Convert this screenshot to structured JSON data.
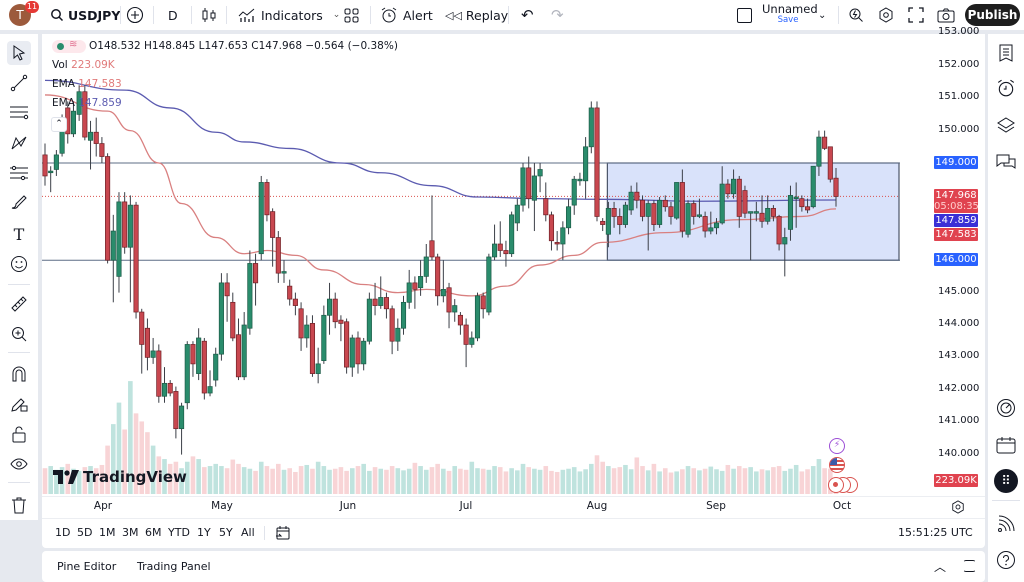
{
  "topbar": {
    "avatar_letter": "T",
    "notification_count": "11",
    "symbol": "USDJPY",
    "interval": "D",
    "indicators_label": "Indicators",
    "alert_label": "Alert",
    "replay_label": "Replay",
    "layout_name": "Unnamed",
    "save_label": "Save",
    "publish_label": "Publish"
  },
  "legend": {
    "ohlc": "O148.532 H148.845 L147.653 C147.968 −0.564 (−0.38%)",
    "vol_label": "Vol",
    "vol_value": "223.09K",
    "ema1_label": "EMA",
    "ema1_value": "147.583",
    "ema2_label": "EMA",
    "ema2_value": "147.859"
  },
  "price_axis": {
    "ticks": [
      "153.000",
      "152.000",
      "151.000",
      "150.000",
      "145.000",
      "144.000",
      "143.000",
      "142.000",
      "141.000",
      "140.000"
    ],
    "tick_values": [
      153,
      152,
      151,
      150,
      145,
      144,
      143,
      142,
      141,
      140
    ],
    "level_149": "149.000",
    "level_146": "146.000",
    "last_price": "147.968",
    "countdown": "05:08:35",
    "ema2_price": "147.859",
    "ema1_price": "147.583",
    "volume_label": "223.09K"
  },
  "time_axis": {
    "labels": [
      "Apr",
      "May",
      "Jun",
      "Jul",
      "Aug",
      "Sep",
      "Oct"
    ]
  },
  "range_bar": {
    "buttons": [
      "1D",
      "5D",
      "1M",
      "3M",
      "6M",
      "YTD",
      "1Y",
      "5Y",
      "All"
    ],
    "clock": "15:51:25 UTC"
  },
  "bottom_panel": {
    "tabs": [
      "Pine Editor",
      "Trading Panel"
    ]
  },
  "watermark": "TradingView",
  "colors": {
    "up": "#2a8c6c",
    "down": "#c8474f",
    "ema_fast": "#d98080",
    "ema_slow": "#5b5bb0",
    "range_box": "#d5dffa",
    "level_box": "#2962ff",
    "accent": "#131722"
  },
  "chart_data": {
    "type": "candlestick",
    "symbol": "USDJPY",
    "interval": "D",
    "x_ticks": [
      "Apr",
      "May",
      "Jun",
      "Jul",
      "Aug",
      "Sep",
      "Oct"
    ],
    "ylim": [
      139,
      153
    ],
    "horizontal_levels": [
      149.0,
      146.0
    ],
    "range_box": {
      "top": 149.0,
      "bottom": 146.0,
      "start_index": 99
    },
    "candles_ohlc": [
      [
        149.25,
        149.6,
        148.3,
        148.6
      ],
      [
        148.7,
        148.9,
        148.1,
        148.75
      ],
      [
        148.8,
        149.4,
        148.6,
        149.25
      ],
      [
        149.3,
        150.5,
        149.2,
        150.3
      ],
      [
        150.7,
        150.9,
        149.6,
        149.9
      ],
      [
        149.9,
        150.9,
        149.8,
        150.6
      ],
      [
        150.5,
        151.4,
        150.3,
        151.2
      ],
      [
        151.2,
        151.4,
        149.7,
        149.8
      ],
      [
        149.7,
        150.3,
        148.8,
        149.95
      ],
      [
        149.95,
        150.4,
        149.2,
        149.6
      ],
      [
        149.6,
        149.8,
        149.0,
        149.2
      ],
      [
        149.2,
        149.3,
        145.9,
        146.0
      ],
      [
        146.0,
        147.4,
        144.7,
        146.9
      ],
      [
        145.5,
        148.1,
        145.0,
        147.8
      ],
      [
        147.8,
        148.1,
        146.2,
        146.4
      ],
      [
        146.4,
        148.0,
        144.7,
        147.7
      ],
      [
        147.7,
        147.8,
        144.2,
        144.4
      ],
      [
        144.4,
        144.5,
        142.5,
        143.4
      ],
      [
        143.9,
        144.2,
        142.6,
        143.0
      ],
      [
        143.0,
        143.6,
        142.8,
        143.2
      ],
      [
        143.2,
        143.4,
        141.6,
        141.8
      ],
      [
        141.8,
        142.7,
        141.6,
        142.2
      ],
      [
        142.2,
        142.3,
        141.8,
        141.9
      ],
      [
        141.95,
        142.1,
        140.5,
        140.8
      ],
      [
        140.8,
        141.6,
        140.0,
        141.5
      ],
      [
        141.6,
        143.5,
        141.4,
        143.4
      ],
      [
        143.4,
        143.5,
        142.4,
        142.8
      ],
      [
        142.5,
        143.9,
        142.3,
        143.6
      ],
      [
        143.5,
        143.6,
        141.7,
        141.9
      ],
      [
        141.9,
        142.6,
        141.8,
        142.1
      ],
      [
        142.3,
        143.3,
        142.1,
        143.1
      ],
      [
        143.1,
        145.6,
        142.9,
        145.3
      ],
      [
        145.3,
        145.6,
        144.1,
        144.9
      ],
      [
        144.7,
        145.0,
        143.5,
        143.6
      ],
      [
        143.7,
        144.2,
        142.3,
        142.4
      ],
      [
        142.4,
        144.4,
        142.3,
        144.0
      ],
      [
        143.9,
        146.3,
        143.7,
        145.9
      ],
      [
        145.9,
        146.2,
        144.6,
        145.3
      ],
      [
        146.2,
        148.6,
        146.0,
        148.4
      ],
      [
        148.4,
        148.5,
        147.2,
        147.4
      ],
      [
        147.5,
        147.6,
        145.8,
        146.7
      ],
      [
        146.7,
        146.9,
        145.3,
        145.6
      ],
      [
        145.6,
        146.0,
        145.3,
        145.65
      ],
      [
        145.2,
        145.4,
        144.6,
        144.8
      ],
      [
        144.8,
        145.0,
        144.3,
        144.6
      ],
      [
        144.5,
        144.7,
        143.2,
        143.6
      ],
      [
        143.6,
        144.3,
        143.3,
        144.0
      ],
      [
        144.05,
        144.3,
        142.4,
        142.5
      ],
      [
        142.5,
        143.3,
        142.2,
        142.8
      ],
      [
        142.9,
        144.6,
        142.8,
        144.3
      ],
      [
        144.3,
        145.3,
        143.7,
        144.8
      ],
      [
        144.8,
        145.0,
        143.9,
        144.1
      ],
      [
        144.15,
        144.3,
        143.5,
        144.05
      ],
      [
        144.1,
        144.2,
        142.5,
        142.7
      ],
      [
        142.7,
        143.7,
        142.4,
        143.6
      ],
      [
        143.6,
        143.8,
        142.5,
        142.8
      ],
      [
        142.8,
        143.6,
        142.6,
        143.5
      ],
      [
        143.5,
        145.0,
        143.4,
        144.8
      ],
      [
        144.8,
        145.3,
        144.3,
        144.6
      ],
      [
        144.6,
        145.5,
        144.5,
        144.85
      ],
      [
        144.85,
        145.0,
        144.2,
        144.5
      ],
      [
        144.5,
        144.6,
        143.1,
        143.5
      ],
      [
        143.5,
        144.2,
        143.2,
        143.9
      ],
      [
        143.9,
        144.9,
        143.7,
        144.7
      ],
      [
        144.7,
        145.7,
        144.5,
        145.3
      ],
      [
        145.3,
        145.5,
        144.5,
        145.1
      ],
      [
        145.15,
        146.0,
        144.9,
        145.5
      ],
      [
        145.5,
        146.5,
        145.3,
        146.1
      ],
      [
        146.6,
        148.0,
        146.0,
        146.1
      ],
      [
        146.1,
        146.2,
        144.6,
        144.9
      ],
      [
        144.9,
        146.0,
        144.7,
        145.1
      ],
      [
        145.15,
        145.3,
        143.9,
        144.4
      ],
      [
        144.4,
        144.8,
        144.1,
        144.6
      ],
      [
        144.3,
        144.4,
        143.7,
        144.0
      ],
      [
        144.0,
        144.2,
        142.7,
        143.4
      ],
      [
        143.4,
        143.8,
        143.3,
        143.6
      ],
      [
        143.6,
        145.0,
        143.5,
        144.9
      ],
      [
        144.9,
        145.0,
        144.2,
        144.5
      ],
      [
        144.4,
        146.2,
        144.3,
        146.1
      ],
      [
        146.1,
        147.1,
        146.0,
        146.5
      ],
      [
        146.5,
        147.2,
        146.1,
        146.3
      ],
      [
        146.3,
        146.6,
        145.8,
        146.2
      ],
      [
        146.2,
        147.5,
        146.1,
        147.4
      ],
      [
        147.15,
        147.9,
        146.9,
        147.7
      ],
      [
        147.7,
        149.0,
        147.5,
        148.85
      ],
      [
        148.85,
        149.2,
        147.6,
        147.9
      ],
      [
        147.85,
        149.0,
        146.9,
        148.6
      ],
      [
        148.6,
        149.0,
        148.1,
        148.8
      ],
      [
        147.9,
        148.4,
        147.2,
        147.4
      ],
      [
        147.4,
        147.5,
        146.3,
        146.6
      ],
      [
        146.55,
        146.9,
        146.3,
        146.5
      ],
      [
        146.5,
        147.2,
        146.0,
        147.0
      ],
      [
        147.0,
        147.9,
        146.8,
        147.65
      ],
      [
        147.7,
        148.6,
        147.4,
        148.5
      ],
      [
        148.45,
        148.7,
        148.3,
        148.5
      ],
      [
        148.45,
        149.8,
        147.9,
        149.5
      ],
      [
        149.5,
        150.9,
        149.3,
        150.7
      ],
      [
        150.7,
        150.9,
        147.2,
        147.35
      ],
      [
        147.2,
        147.3,
        146.9,
        147.1
      ],
      [
        146.8,
        147.8,
        146.4,
        147.6
      ],
      [
        147.6,
        147.8,
        147.0,
        147.35
      ],
      [
        147.35,
        147.6,
        146.8,
        147.1
      ],
      [
        147.1,
        147.8,
        147.0,
        147.7
      ],
      [
        147.55,
        148.3,
        147.4,
        148.1
      ],
      [
        148.1,
        148.4,
        147.6,
        147.85
      ],
      [
        147.85,
        148.0,
        147.2,
        147.35
      ],
      [
        147.35,
        147.85,
        146.3,
        147.75
      ],
      [
        147.75,
        147.85,
        146.9,
        147.1
      ],
      [
        147.1,
        147.95,
        147.0,
        147.85
      ],
      [
        147.85,
        148.0,
        147.5,
        147.65
      ],
      [
        147.65,
        147.8,
        147.1,
        147.35
      ],
      [
        147.3,
        148.4,
        147.25,
        148.4
      ],
      [
        148.4,
        148.8,
        146.7,
        146.9
      ],
      [
        146.8,
        147.85,
        146.7,
        147.75
      ],
      [
        147.75,
        147.85,
        147.1,
        147.35
      ],
      [
        147.35,
        147.9,
        147.3,
        147.4
      ],
      [
        147.35,
        147.5,
        146.7,
        146.9
      ],
      [
        146.9,
        147.5,
        146.8,
        147.0
      ],
      [
        147.0,
        147.3,
        146.8,
        147.15
      ],
      [
        147.15,
        148.9,
        147.1,
        148.35
      ],
      [
        148.35,
        148.5,
        147.9,
        148.05
      ],
      [
        148.05,
        148.8,
        147.9,
        148.5
      ],
      [
        148.5,
        148.6,
        147.0,
        147.35
      ],
      [
        148.15,
        148.3,
        147.3,
        147.45
      ],
      [
        147.45,
        147.5,
        146.0,
        147.5
      ],
      [
        147.45,
        147.8,
        147.2,
        147.5
      ],
      [
        147.45,
        148.0,
        147.0,
        147.2
      ],
      [
        147.2,
        148.0,
        147.1,
        147.6
      ],
      [
        147.6,
        147.7,
        147.2,
        147.35
      ],
      [
        147.35,
        147.4,
        146.3,
        146.5
      ],
      [
        146.5,
        147.0,
        145.5,
        146.7
      ],
      [
        146.95,
        148.3,
        146.6,
        148.0
      ],
      [
        147.9,
        148.4,
        147.0,
        147.95
      ],
      [
        147.9,
        148.0,
        147.5,
        147.65
      ],
      [
        147.65,
        147.9,
        147.45,
        147.55
      ],
      [
        147.65,
        148.9,
        147.6,
        148.9
      ],
      [
        148.9,
        150.0,
        148.6,
        149.8
      ],
      [
        149.8,
        150.0,
        149.4,
        149.45
      ],
      [
        149.5,
        149.5,
        148.4,
        148.5
      ],
      [
        148.532,
        148.845,
        147.653,
        147.968
      ]
    ],
    "volume_k": [
      480,
      520,
      450,
      500,
      560,
      470,
      430,
      500,
      520,
      480,
      540,
      900,
      1300,
      1700,
      1200,
      2100,
      1500,
      1350,
      1150,
      900,
      700,
      650,
      560,
      600,
      480,
      600,
      700,
      650,
      500,
      520,
      560,
      520,
      480,
      640,
      560,
      500,
      470,
      430,
      600,
      520,
      470,
      560,
      450,
      480,
      410,
      520,
      540,
      470,
      600,
      520,
      450,
      470,
      500,
      430,
      480,
      520,
      560,
      430,
      500,
      470,
      450,
      520,
      480,
      440,
      470,
      580,
      520,
      450,
      500,
      560,
      470,
      430,
      520,
      470,
      450,
      600,
      480,
      470,
      450,
      520,
      500,
      420,
      480,
      440,
      560,
      500,
      470,
      450,
      520,
      430,
      410,
      450,
      470,
      500,
      420,
      460,
      560,
      720,
      600,
      520,
      480,
      500,
      540,
      460,
      680,
      520,
      440,
      560,
      420,
      480,
      400,
      420,
      460,
      520,
      480,
      440,
      470,
      510,
      460,
      430,
      540,
      470,
      520,
      480,
      500,
      420,
      460,
      440,
      500,
      520,
      430,
      470,
      540,
      420,
      460,
      520,
      650,
      480,
      470,
      223.09
    ],
    "ema_slow_points": [
      [
        0,
        151.55
      ],
      [
        14,
        151.25
      ],
      [
        22,
        150.7
      ],
      [
        30,
        149.95
      ],
      [
        35,
        149.65
      ],
      [
        43,
        149.45
      ],
      [
        52,
        149.0
      ],
      [
        59,
        148.7
      ],
      [
        68,
        148.3
      ],
      [
        76,
        147.95
      ],
      [
        87,
        147.9
      ],
      [
        98,
        147.88
      ],
      [
        115,
        147.82
      ],
      [
        139,
        147.859
      ]
    ],
    "ema_fast_points": [
      [
        0,
        151.1
      ],
      [
        11,
        150.6
      ],
      [
        15,
        150.0
      ],
      [
        20,
        149.0
      ],
      [
        24,
        147.75
      ],
      [
        30,
        146.7
      ],
      [
        35,
        146.2
      ],
      [
        39,
        146.3
      ],
      [
        44,
        146.15
      ],
      [
        49,
        145.7
      ],
      [
        56,
        145.25
      ],
      [
        62,
        145.0
      ],
      [
        67,
        145.1
      ],
      [
        75,
        144.9
      ],
      [
        81,
        145.2
      ],
      [
        87,
        145.85
      ],
      [
        93,
        146.15
      ],
      [
        98,
        146.55
      ],
      [
        109,
        146.85
      ],
      [
        122,
        147.25
      ],
      [
        133,
        147.35
      ],
      [
        139,
        147.583
      ]
    ]
  }
}
